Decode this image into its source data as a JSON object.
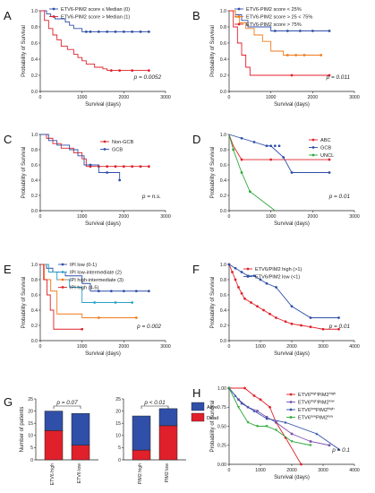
{
  "figure": {
    "panels": [
      "A",
      "B",
      "C",
      "D",
      "E",
      "F",
      "G",
      "H"
    ]
  },
  "chart_data": [
    {
      "panel": "A",
      "type": "line",
      "step": true,
      "xlabel": "Survival (days)",
      "ylabel": "Probability of Survival",
      "xticks": [
        0,
        1000,
        2000,
        3000
      ],
      "yticks": [
        0.0,
        0.2,
        0.4,
        0.6,
        0.8,
        1.0
      ],
      "xlim": [
        0,
        3000
      ],
      "ylim": [
        0,
        1
      ],
      "legend": "top-right",
      "annotation": "p = 0.0052",
      "series": [
        {
          "name": "ETV6-PIM2 score ≤ Median (0)",
          "color": "#2f4fa8",
          "x": [
            0,
            150,
            250,
            350,
            600,
            700,
            800,
            1000,
            2200,
            2600
          ],
          "y": [
            1.0,
            0.96,
            0.93,
            0.9,
            0.86,
            0.82,
            0.78,
            0.74,
            0.74,
            0.74
          ],
          "censor_x": [
            1100,
            1200,
            1400,
            1600,
            1800,
            2000,
            2200,
            2400,
            2600
          ]
        },
        {
          "name": "ETV6-PIM2 score > Median (1)",
          "color": "#e0202a",
          "x": [
            0,
            100,
            200,
            300,
            400,
            500,
            650,
            800,
            900,
            1000,
            1100,
            1300,
            1500,
            1600,
            2600
          ],
          "y": [
            1.0,
            0.88,
            0.78,
            0.7,
            0.64,
            0.56,
            0.52,
            0.46,
            0.42,
            0.38,
            0.34,
            0.3,
            0.28,
            0.26,
            0.26
          ],
          "censor_x": [
            1700,
            1900,
            2200,
            2600
          ]
        }
      ]
    },
    {
      "panel": "B",
      "type": "line",
      "step": true,
      "xlabel": "Survival (days)",
      "ylabel": "Probability of Survival",
      "xticks": [
        0,
        1000,
        2000,
        3000
      ],
      "yticks": [
        0.0,
        0.2,
        0.4,
        0.6,
        0.8,
        1.0
      ],
      "xlim": [
        0,
        3000
      ],
      "ylim": [
        0,
        1
      ],
      "legend": "top-right",
      "annotation": "p = 0.011",
      "series": [
        {
          "name": "ETV6-PIM2 score < 25%",
          "color": "#2f4fa8",
          "x": [
            0,
            150,
            300,
            450,
            1000,
            2400
          ],
          "y": [
            1.0,
            0.95,
            0.88,
            0.8,
            0.75,
            0.75
          ],
          "censor_x": [
            1100,
            1400,
            1700,
            2000,
            2400
          ]
        },
        {
          "name": "ETV6-PIM2 score > 25 < 75%",
          "color": "#f07a1a",
          "x": [
            0,
            150,
            250,
            400,
            600,
            800,
            1000,
            1300,
            2200
          ],
          "y": [
            1.0,
            0.92,
            0.85,
            0.78,
            0.7,
            0.62,
            0.5,
            0.45,
            0.45
          ],
          "censor_x": [
            1400,
            1600,
            1800,
            2200
          ]
        },
        {
          "name": "ETV6-PIM2 score > 75%",
          "color": "#e0202a",
          "x": [
            0,
            100,
            200,
            300,
            400,
            500,
            2400
          ],
          "y": [
            1.0,
            0.8,
            0.6,
            0.45,
            0.3,
            0.2,
            0.2
          ],
          "censor_x": [
            1500,
            2400
          ]
        }
      ]
    },
    {
      "panel": "C",
      "type": "line",
      "step": true,
      "xlabel": "Survival (days)",
      "ylabel": "Probability of Survival",
      "xticks": [
        0,
        1000,
        2000,
        3000
      ],
      "yticks": [
        0.0,
        0.2,
        0.4,
        0.6,
        0.8,
        1.0
      ],
      "xlim": [
        0,
        3000
      ],
      "ylim": [
        0,
        1
      ],
      "legend": "top-right",
      "annotation": "p = n.s.",
      "series": [
        {
          "name": "Non-GCB",
          "color": "#e0202a",
          "x": [
            0,
            150,
            300,
            500,
            800,
            1000,
            1100,
            2600
          ],
          "y": [
            1.0,
            0.95,
            0.88,
            0.82,
            0.76,
            0.68,
            0.58,
            0.58
          ],
          "censor_x": [
            1200,
            1400,
            1600,
            1800,
            2000,
            2200,
            2400,
            2600
          ]
        },
        {
          "name": "GCB",
          "color": "#2f4fa8",
          "x": [
            0,
            200,
            400,
            700,
            900,
            1050,
            1400,
            1900
          ],
          "y": [
            1.0,
            0.92,
            0.86,
            0.8,
            0.72,
            0.6,
            0.5,
            0.4
          ],
          "censor_x": [
            1200,
            1600,
            1900
          ]
        }
      ]
    },
    {
      "panel": "D",
      "type": "line",
      "step": false,
      "xlabel": "Survival (days)",
      "ylabel": "Probability of Survival",
      "xticks": [
        0,
        1000,
        2000,
        3000
      ],
      "yticks": [
        0.0,
        0.2,
        0.4,
        0.6,
        0.8,
        1.0
      ],
      "xlim": [
        0,
        3000
      ],
      "ylim": [
        0,
        1
      ],
      "legend": "top-right",
      "annotation": "p = 0.01",
      "series": [
        {
          "name": "ABC",
          "color": "#e0202a",
          "x": [
            0,
            100,
            300,
            2400
          ],
          "y": [
            1.0,
            0.85,
            0.67,
            0.67
          ],
          "censor_x": [
            300,
            1000,
            2400
          ]
        },
        {
          "name": "GCB",
          "color": "#2f4fa8",
          "x": [
            0,
            300,
            600,
            900,
            1000,
            1300,
            1500,
            2400
          ],
          "y": [
            1.0,
            0.95,
            0.9,
            0.85,
            0.85,
            0.7,
            0.5,
            0.5
          ],
          "censor_x": [
            300,
            600,
            900,
            1000,
            1100,
            1200,
            1300,
            1500,
            2400
          ]
        },
        {
          "name": "UNCL",
          "color": "#2ba838",
          "x": [
            0,
            100,
            300,
            500,
            1100
          ],
          "y": [
            1.0,
            0.8,
            0.5,
            0.25,
            0.0
          ],
          "censor_x": [
            100,
            300,
            500
          ]
        }
      ]
    },
    {
      "panel": "E",
      "type": "line",
      "step": true,
      "xlabel": "Survival (days)",
      "ylabel": "Probability of Survival",
      "xticks": [
        0,
        1000,
        2000,
        3000
      ],
      "yticks": [
        0.0,
        0.2,
        0.4,
        0.6,
        0.8,
        1.0
      ],
      "xlim": [
        0,
        3000
      ],
      "ylim": [
        0,
        1
      ],
      "legend": "top-right",
      "annotation": "p = 0.002",
      "series": [
        {
          "name": "IPI low (0-1)",
          "color": "#2f4fa8",
          "x": [
            0,
            150,
            300,
            600,
            1000,
            1200,
            2600
          ],
          "y": [
            1.0,
            0.95,
            0.9,
            0.85,
            0.75,
            0.65,
            0.65
          ],
          "censor_x": [
            1400,
            1700,
            2000,
            2300,
            2600
          ]
        },
        {
          "name": "IPI low-intermediate (2)",
          "color": "#2aa0c8",
          "x": [
            0,
            200,
            400,
            700,
            1000,
            2200
          ],
          "y": [
            1.0,
            0.9,
            0.8,
            0.7,
            0.5,
            0.5
          ],
          "censor_x": [
            1300,
            1800,
            2200
          ]
        },
        {
          "name": "IPI high-intermediate (3)",
          "color": "#f07a1a",
          "x": [
            0,
            100,
            250,
            400,
            1000,
            2300
          ],
          "y": [
            1.0,
            0.8,
            0.65,
            0.35,
            0.3,
            0.3
          ],
          "censor_x": [
            1400,
            2300
          ]
        },
        {
          "name": "IPI high (4-5)",
          "color": "#e0202a",
          "x": [
            0,
            80,
            160,
            240,
            320,
            1000
          ],
          "y": [
            1.0,
            0.8,
            0.6,
            0.4,
            0.15,
            0.15
          ],
          "censor_x": [
            1000
          ]
        }
      ]
    },
    {
      "panel": "F",
      "type": "line",
      "step": false,
      "xlabel": "Survival (days)",
      "ylabel": "Probability of Survival",
      "xticks": [
        0,
        1000,
        2000,
        3000,
        4000
      ],
      "yticks": [
        0.0,
        0.2,
        0.4,
        0.6,
        0.8,
        1.0
      ],
      "xlim": [
        0,
        4000
      ],
      "ylim": [
        0,
        1
      ],
      "legend": "top-right",
      "annotation": "p = 0.01",
      "series": [
        {
          "name": "ETV6/PIM2 high (>1)",
          "color": "#e0202a",
          "x": [
            0,
            100,
            200,
            300,
            400,
            500,
            700,
            900,
            1100,
            1300,
            1500,
            1800,
            2000,
            2300,
            2600,
            3000,
            3500
          ],
          "y": [
            1.0,
            0.9,
            0.8,
            0.7,
            0.62,
            0.55,
            0.5,
            0.45,
            0.4,
            0.35,
            0.3,
            0.25,
            0.22,
            0.2,
            0.18,
            0.15,
            0.15
          ]
        },
        {
          "name": "ETV6/PIM2 low (<1)",
          "color": "#2f4fa8",
          "x": [
            0,
            200,
            400,
            600,
            800,
            1000,
            1200,
            1500,
            2000,
            2600,
            3500
          ],
          "y": [
            1.0,
            0.95,
            0.9,
            0.85,
            0.85,
            0.8,
            0.75,
            0.7,
            0.45,
            0.3,
            0.3
          ]
        }
      ]
    },
    {
      "panel": "G1",
      "type": "bar",
      "stacked": true,
      "ylabel": "Number of patients",
      "categories": [
        "ETV6 high",
        "ETV6 low"
      ],
      "yticks": [
        0,
        5,
        10,
        15,
        20,
        25
      ],
      "ylim": [
        0,
        25
      ],
      "annotation": "p = 0.07",
      "series": [
        {
          "name": "Dead",
          "color": "#e0202a",
          "values": [
            12,
            6
          ]
        },
        {
          "name": "Alive",
          "color": "#2f4fa8",
          "values": [
            8,
            13
          ]
        }
      ]
    },
    {
      "panel": "G2",
      "type": "bar",
      "stacked": true,
      "ylabel": "",
      "categories": [
        "PIM2 high",
        "PIM2 low"
      ],
      "yticks": [
        0,
        5,
        10,
        15,
        20,
        25
      ],
      "ylim": [
        0,
        25
      ],
      "annotation": "p < 0.01",
      "legend": "top-right",
      "series": [
        {
          "name": "Dead",
          "color": "#e0202a",
          "values": [
            4,
            14
          ]
        },
        {
          "name": "Alive",
          "color": "#2f4fa8",
          "values": [
            14,
            7
          ]
        }
      ]
    },
    {
      "panel": "H",
      "type": "line",
      "step": false,
      "xlabel": "Survival (days)",
      "ylabel": "Probability of Survival",
      "xticks": [
        0,
        1000,
        2000,
        3000,
        4000
      ],
      "yticks": [
        0.0,
        0.25,
        0.5,
        0.75,
        1.0
      ],
      "xlim": [
        0,
        4000
      ],
      "ylim": [
        0,
        1
      ],
      "legend": "top-right",
      "annotation": "p = 0.1",
      "series": [
        {
          "name": "ETV6highPIM2high",
          "base": "ETV6",
          "sup1": "high",
          "mid": "PIM2",
          "sup2": "high",
          "color": "#e0202a",
          "x": [
            0,
            500,
            800,
            1000,
            1300,
            1500,
            1800,
            2300
          ],
          "y": [
            1.0,
            1.0,
            0.9,
            0.85,
            0.75,
            0.55,
            0.35,
            0.0
          ]
        },
        {
          "name": "ETV6highPIM2low",
          "base": "ETV6",
          "sup1": "high",
          "mid": "PIM2",
          "sup2": "low",
          "color": "#7a4fb0",
          "x": [
            0,
            300,
            600,
            900,
            1200,
            1500,
            2000,
            2600,
            3200
          ],
          "y": [
            1.0,
            0.85,
            0.75,
            0.7,
            0.62,
            0.55,
            0.4,
            0.3,
            0.25
          ]
        },
        {
          "name": "ETV6lowPIM2high",
          "base": "ETV6",
          "sup1": "low",
          "mid": "PIM2",
          "sup2": "high",
          "color": "#2f4fa8",
          "x": [
            0,
            200,
            400,
            800,
            1200,
            1800,
            2800,
            3500
          ],
          "y": [
            1.0,
            0.9,
            0.8,
            0.7,
            0.6,
            0.55,
            0.4,
            0.2
          ]
        },
        {
          "name": "ETV6lowPIM2low",
          "base": "ETV6",
          "sup1": "low",
          "mid": "PIM2",
          "sup2": "low",
          "color": "#2ba838",
          "x": [
            0,
            300,
            600,
            900,
            1200,
            1500,
            2000,
            2600
          ],
          "y": [
            1.0,
            0.75,
            0.55,
            0.5,
            0.5,
            0.45,
            0.3,
            0.25
          ]
        }
      ]
    }
  ]
}
